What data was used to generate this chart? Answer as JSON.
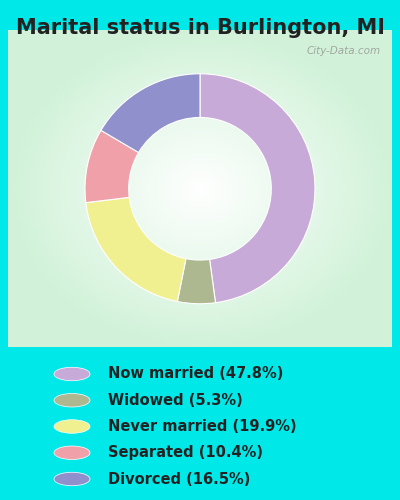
{
  "title": "Marital status in Burlington, MI",
  "categories": [
    "Now married",
    "Widowed",
    "Never married",
    "Separated",
    "Divorced"
  ],
  "values": [
    47.8,
    5.3,
    19.9,
    10.4,
    16.5
  ],
  "colors": [
    "#c8aad8",
    "#adb890",
    "#f0f090",
    "#f0a0a8",
    "#9090cc"
  ],
  "background_outer": "#00e8e8",
  "legend_labels": [
    "Now married (47.8%)",
    "Widowed (5.3%)",
    "Never married (19.9%)",
    "Separated (10.4%)",
    "Divorced (16.5%)"
  ],
  "watermark": "City-Data.com",
  "title_fontsize": 15,
  "legend_fontsize": 10.5,
  "donut_width": 0.38,
  "startangle": 90
}
